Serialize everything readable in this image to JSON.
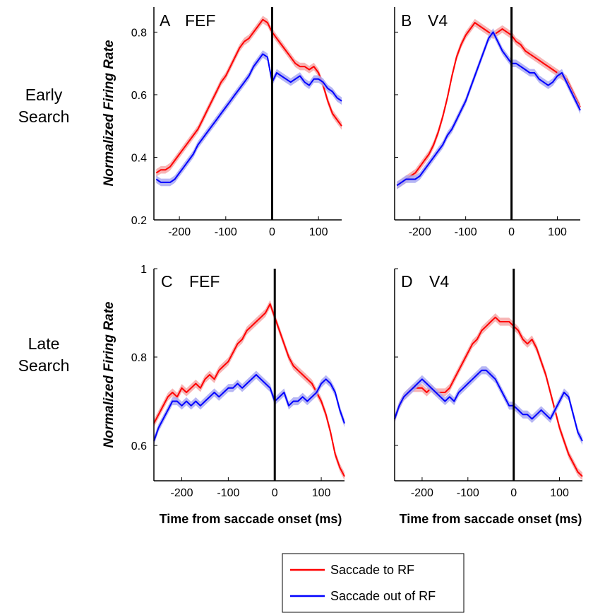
{
  "row_labels": [
    {
      "lines": [
        "Early",
        "Search"
      ]
    },
    {
      "lines": [
        "Late",
        "Search"
      ]
    }
  ],
  "colors": {
    "to_rf": "#ff0000",
    "out_rf": "#0000ff",
    "to_rf_band": "#f6a8a8",
    "out_rf_band": "#a9a9f2"
  },
  "legend": [
    {
      "label": "Saccade to RF",
      "color": "#ff0000"
    },
    {
      "label": "Saccade out of RF",
      "color": "#0000ff"
    }
  ],
  "chart_data": [
    {
      "type": "line",
      "panel_letter": "A",
      "title": "FEF",
      "ylabel": "Normalized Firing Rate",
      "xlabel": "",
      "xlim": [
        -255,
        150
      ],
      "ylim": [
        0.2,
        0.88
      ],
      "xticks": [
        -200,
        -100,
        0,
        100
      ],
      "yticks": [
        0.2,
        0.4,
        0.6,
        0.8
      ],
      "ytick_labels": [
        "0.2",
        "0.4",
        "0.6",
        "0.8"
      ],
      "band": 0.012,
      "series": [
        {
          "name": "Saccade to RF",
          "color": "#ff0000",
          "x": [
            -250,
            -240,
            -230,
            -220,
            -210,
            -200,
            -190,
            -180,
            -170,
            -160,
            -150,
            -140,
            -130,
            -120,
            -110,
            -100,
            -90,
            -80,
            -70,
            -60,
            -50,
            -40,
            -30,
            -20,
            -10,
            0,
            10,
            20,
            30,
            40,
            50,
            60,
            70,
            80,
            90,
            100,
            110,
            120,
            130,
            140,
            150
          ],
          "y": [
            0.35,
            0.36,
            0.36,
            0.37,
            0.39,
            0.41,
            0.43,
            0.45,
            0.47,
            0.49,
            0.52,
            0.55,
            0.58,
            0.61,
            0.64,
            0.66,
            0.69,
            0.72,
            0.75,
            0.77,
            0.78,
            0.8,
            0.82,
            0.84,
            0.83,
            0.8,
            0.78,
            0.76,
            0.74,
            0.72,
            0.7,
            0.69,
            0.69,
            0.68,
            0.69,
            0.67,
            0.63,
            0.58,
            0.54,
            0.52,
            0.5
          ]
        },
        {
          "name": "Saccade out of RF",
          "color": "#0000ff",
          "x": [
            -250,
            -240,
            -230,
            -220,
            -210,
            -200,
            -190,
            -180,
            -170,
            -160,
            -150,
            -140,
            -130,
            -120,
            -110,
            -100,
            -90,
            -80,
            -70,
            -60,
            -50,
            -40,
            -30,
            -20,
            -10,
            0,
            10,
            20,
            30,
            40,
            50,
            60,
            70,
            80,
            90,
            100,
            110,
            120,
            130,
            140,
            150
          ],
          "y": [
            0.33,
            0.32,
            0.32,
            0.32,
            0.33,
            0.35,
            0.37,
            0.39,
            0.41,
            0.44,
            0.46,
            0.48,
            0.5,
            0.52,
            0.54,
            0.56,
            0.58,
            0.6,
            0.62,
            0.64,
            0.66,
            0.69,
            0.71,
            0.73,
            0.72,
            0.64,
            0.67,
            0.66,
            0.65,
            0.64,
            0.65,
            0.66,
            0.64,
            0.63,
            0.65,
            0.65,
            0.64,
            0.62,
            0.61,
            0.59,
            0.58
          ]
        }
      ]
    },
    {
      "type": "line",
      "panel_letter": "B",
      "title": "V4",
      "ylabel": "",
      "xlabel": "",
      "xlim": [
        -255,
        150
      ],
      "ylim": [
        0.2,
        0.88
      ],
      "xticks": [
        -200,
        -100,
        0,
        100
      ],
      "yticks": [
        0.2,
        0.4,
        0.6,
        0.8
      ],
      "ytick_labels": [
        "",
        "",
        "",
        ""
      ],
      "band": 0.012,
      "series": [
        {
          "name": "Saccade to RF",
          "color": "#ff0000",
          "x": [
            -250,
            -240,
            -230,
            -220,
            -210,
            -200,
            -190,
            -180,
            -170,
            -160,
            -150,
            -140,
            -130,
            -120,
            -110,
            -100,
            -90,
            -80,
            -70,
            -60,
            -50,
            -40,
            -30,
            -20,
            -10,
            0,
            10,
            20,
            30,
            40,
            50,
            60,
            70,
            80,
            90,
            100,
            110,
            120,
            130,
            140,
            150
          ],
          "y": [
            0.31,
            0.32,
            0.33,
            0.34,
            0.35,
            0.37,
            0.39,
            0.41,
            0.44,
            0.48,
            0.53,
            0.59,
            0.66,
            0.72,
            0.76,
            0.79,
            0.81,
            0.83,
            0.82,
            0.81,
            0.8,
            0.79,
            0.8,
            0.81,
            0.8,
            0.79,
            0.77,
            0.76,
            0.74,
            0.73,
            0.72,
            0.71,
            0.7,
            0.69,
            0.68,
            0.67,
            0.66,
            0.65,
            0.62,
            0.59,
            0.56
          ]
        },
        {
          "name": "Saccade out of RF",
          "color": "#0000ff",
          "x": [
            -250,
            -240,
            -230,
            -220,
            -210,
            -200,
            -190,
            -180,
            -170,
            -160,
            -150,
            -140,
            -130,
            -120,
            -110,
            -100,
            -90,
            -80,
            -70,
            -60,
            -50,
            -40,
            -30,
            -20,
            -10,
            0,
            10,
            20,
            30,
            40,
            50,
            60,
            70,
            80,
            90,
            100,
            110,
            120,
            130,
            140,
            150
          ],
          "y": [
            0.31,
            0.32,
            0.33,
            0.33,
            0.33,
            0.34,
            0.36,
            0.38,
            0.4,
            0.42,
            0.44,
            0.47,
            0.49,
            0.52,
            0.55,
            0.58,
            0.62,
            0.66,
            0.7,
            0.74,
            0.78,
            0.8,
            0.77,
            0.74,
            0.72,
            0.7,
            0.7,
            0.69,
            0.68,
            0.67,
            0.67,
            0.65,
            0.64,
            0.63,
            0.64,
            0.66,
            0.67,
            0.64,
            0.61,
            0.58,
            0.55
          ]
        }
      ]
    },
    {
      "type": "line",
      "panel_letter": "C",
      "title": "FEF",
      "ylabel": "Normalized Firing Rate",
      "xlabel": "Time from saccade onset (ms)",
      "xlim": [
        -260,
        150
      ],
      "ylim": [
        0.52,
        1.0
      ],
      "xticks": [
        -200,
        -100,
        0,
        100
      ],
      "yticks": [
        0.6,
        0.8,
        1.0
      ],
      "ytick_labels": [
        "0.6",
        "0.8",
        "1"
      ],
      "band": 0.009,
      "series": [
        {
          "name": "Saccade to RF",
          "color": "#ff0000",
          "x": [
            -260,
            -250,
            -240,
            -230,
            -220,
            -210,
            -200,
            -190,
            -180,
            -170,
            -160,
            -150,
            -140,
            -130,
            -120,
            -110,
            -100,
            -90,
            -80,
            -70,
            -60,
            -50,
            -40,
            -30,
            -20,
            -10,
            0,
            10,
            20,
            30,
            40,
            50,
            60,
            70,
            80,
            90,
            100,
            110,
            120,
            130,
            140,
            150
          ],
          "y": [
            0.65,
            0.67,
            0.69,
            0.71,
            0.72,
            0.71,
            0.73,
            0.72,
            0.73,
            0.74,
            0.73,
            0.75,
            0.76,
            0.75,
            0.77,
            0.78,
            0.79,
            0.81,
            0.83,
            0.84,
            0.86,
            0.87,
            0.88,
            0.89,
            0.9,
            0.92,
            0.89,
            0.86,
            0.83,
            0.8,
            0.78,
            0.77,
            0.76,
            0.75,
            0.74,
            0.72,
            0.7,
            0.67,
            0.63,
            0.58,
            0.55,
            0.53
          ]
        },
        {
          "name": "Saccade out of RF",
          "color": "#0000ff",
          "x": [
            -260,
            -250,
            -240,
            -230,
            -220,
            -210,
            -200,
            -190,
            -180,
            -170,
            -160,
            -150,
            -140,
            -130,
            -120,
            -110,
            -100,
            -90,
            -80,
            -70,
            -60,
            -50,
            -40,
            -30,
            -20,
            -10,
            0,
            10,
            20,
            30,
            40,
            50,
            60,
            70,
            80,
            90,
            100,
            110,
            120,
            130,
            140,
            150
          ],
          "y": [
            0.61,
            0.64,
            0.66,
            0.68,
            0.7,
            0.7,
            0.69,
            0.7,
            0.69,
            0.7,
            0.69,
            0.7,
            0.71,
            0.72,
            0.71,
            0.72,
            0.73,
            0.73,
            0.74,
            0.73,
            0.74,
            0.75,
            0.76,
            0.75,
            0.74,
            0.73,
            0.7,
            0.71,
            0.72,
            0.69,
            0.7,
            0.7,
            0.71,
            0.7,
            0.71,
            0.72,
            0.74,
            0.75,
            0.74,
            0.72,
            0.68,
            0.65
          ]
        }
      ]
    },
    {
      "type": "line",
      "panel_letter": "D",
      "title": "V4",
      "ylabel": "",
      "xlabel": "Time from saccade onset (ms)",
      "xlim": [
        -260,
        150
      ],
      "ylim": [
        0.52,
        1.0
      ],
      "xticks": [
        -200,
        -100,
        0,
        100
      ],
      "yticks": [
        0.6,
        0.8,
        1.0
      ],
      "ytick_labels": [
        "",
        "",
        ""
      ],
      "band": 0.009,
      "series": [
        {
          "name": "Saccade to RF",
          "color": "#ff0000",
          "x": [
            -260,
            -250,
            -240,
            -230,
            -220,
            -210,
            -200,
            -190,
            -180,
            -170,
            -160,
            -150,
            -140,
            -130,
            -120,
            -110,
            -100,
            -90,
            -80,
            -70,
            -60,
            -50,
            -40,
            -30,
            -20,
            -10,
            0,
            10,
            20,
            30,
            40,
            50,
            60,
            70,
            80,
            90,
            100,
            110,
            120,
            130,
            140,
            150
          ],
          "y": [
            0.66,
            0.69,
            0.71,
            0.72,
            0.73,
            0.73,
            0.73,
            0.72,
            0.73,
            0.72,
            0.72,
            0.72,
            0.73,
            0.75,
            0.77,
            0.79,
            0.81,
            0.83,
            0.84,
            0.86,
            0.87,
            0.88,
            0.89,
            0.88,
            0.88,
            0.88,
            0.87,
            0.86,
            0.84,
            0.83,
            0.84,
            0.82,
            0.79,
            0.76,
            0.72,
            0.68,
            0.64,
            0.61,
            0.58,
            0.56,
            0.54,
            0.53
          ]
        },
        {
          "name": "Saccade out of RF",
          "color": "#0000ff",
          "x": [
            -260,
            -250,
            -240,
            -230,
            -220,
            -210,
            -200,
            -190,
            -180,
            -170,
            -160,
            -150,
            -140,
            -130,
            -120,
            -110,
            -100,
            -90,
            -80,
            -70,
            -60,
            -50,
            -40,
            -30,
            -20,
            -10,
            0,
            10,
            20,
            30,
            40,
            50,
            60,
            70,
            80,
            90,
            100,
            110,
            120,
            130,
            140,
            150
          ],
          "y": [
            0.66,
            0.69,
            0.71,
            0.72,
            0.73,
            0.74,
            0.75,
            0.74,
            0.73,
            0.72,
            0.71,
            0.7,
            0.71,
            0.7,
            0.72,
            0.73,
            0.74,
            0.75,
            0.76,
            0.77,
            0.77,
            0.76,
            0.75,
            0.73,
            0.71,
            0.69,
            0.69,
            0.68,
            0.67,
            0.67,
            0.66,
            0.67,
            0.68,
            0.67,
            0.66,
            0.68,
            0.7,
            0.72,
            0.71,
            0.67,
            0.63,
            0.61
          ]
        }
      ]
    }
  ]
}
